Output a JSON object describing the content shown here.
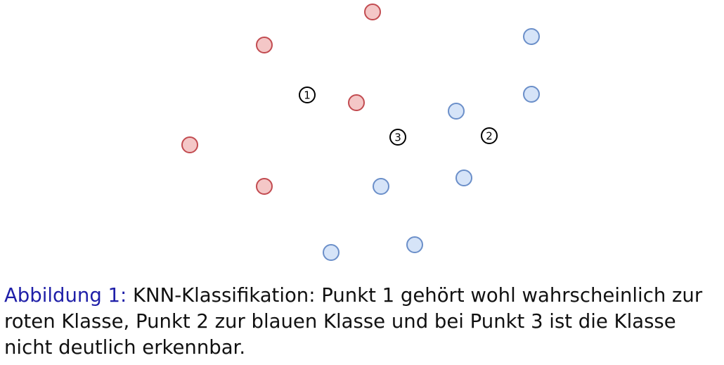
{
  "colors": {
    "red_fill": "#f4c7c7",
    "red_stroke": "#c24b50",
    "blue_fill": "#d6e4f8",
    "blue_stroke": "#6b8fc9",
    "query_stroke": "#000000",
    "caption_label": "#1f1fa8"
  },
  "chart_data": {
    "type": "scatter",
    "title": "",
    "xlabel": "",
    "ylabel": "",
    "grid": false,
    "xlim": [
      0,
      1030
    ],
    "ylim": [
      0,
      390
    ],
    "series": [
      {
        "class": "red",
        "points": [
          {
            "x": 530,
            "y": 17
          },
          {
            "x": 376,
            "y": 64
          },
          {
            "x": 507,
            "y": 146
          },
          {
            "x": 270,
            "y": 206
          },
          {
            "x": 376,
            "y": 265
          }
        ]
      },
      {
        "class": "blue",
        "points": [
          {
            "x": 756,
            "y": 52
          },
          {
            "x": 756,
            "y": 134
          },
          {
            "x": 649,
            "y": 158
          },
          {
            "x": 660,
            "y": 253
          },
          {
            "x": 542,
            "y": 265
          },
          {
            "x": 590,
            "y": 348
          },
          {
            "x": 471,
            "y": 359
          }
        ]
      }
    ],
    "query_points": [
      {
        "label": "1",
        "x": 437,
        "y": 135
      },
      {
        "label": "2",
        "x": 696,
        "y": 193
      },
      {
        "label": "3",
        "x": 566,
        "y": 195
      }
    ]
  },
  "caption": {
    "label": "Abbildung 1:",
    "text": " KNN-Klassifikation: Punkt 1 gehört wohl wahrscheinlich zur roten Klasse, Punkt 2 zur blauen Klasse und bei Punkt 3 ist die Klasse nicht deutlich erkennbar."
  }
}
